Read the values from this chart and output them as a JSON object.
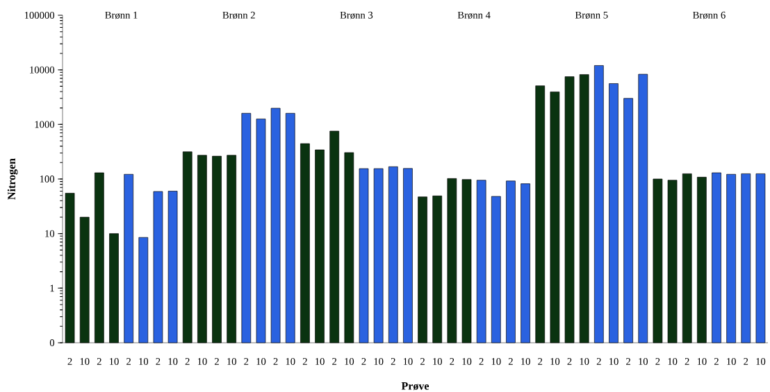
{
  "chart_data": {
    "type": "bar",
    "xlabel": "Prøve",
    "ylabel": "Nitrogen",
    "categories": [
      "2",
      "10",
      "2",
      "10",
      "2",
      "10",
      "2",
      "10",
      "2",
      "10",
      "2",
      "10",
      "2",
      "10",
      "2",
      "10",
      "2",
      "10",
      "2",
      "10",
      "2",
      "10",
      "2",
      "10",
      "2",
      "10",
      "2",
      "10",
      "2",
      "10",
      "2",
      "10",
      "2",
      "10",
      "2",
      "10",
      "2",
      "10",
      "2",
      "10",
      "2",
      "10",
      "2",
      "10",
      "2",
      "10",
      "2",
      "10"
    ],
    "values": [
      55,
      20,
      130,
      10,
      122,
      8.5,
      59,
      60,
      315,
      272,
      262,
      272,
      1600,
      1260,
      1980,
      1600,
      445,
      342,
      755,
      305,
      155,
      155,
      168,
      156,
      47,
      49,
      102,
      98,
      95,
      48,
      92,
      82,
      5100,
      3950,
      7500,
      8200,
      12000,
      5600,
      3000,
      8300,
      100,
      95,
      125,
      108,
      130,
      122,
      125,
      125
    ],
    "colors": [
      "#0a3310",
      "#0a3310",
      "#0a3310",
      "#0a3310",
      "#2a62e0",
      "#2a62e0",
      "#2a62e0",
      "#2a62e0",
      "#0a3310",
      "#0a3310",
      "#0a3310",
      "#0a3310",
      "#2a62e0",
      "#2a62e0",
      "#2a62e0",
      "#2a62e0",
      "#0a3310",
      "#0a3310",
      "#0a3310",
      "#0a3310",
      "#2a62e0",
      "#2a62e0",
      "#2a62e0",
      "#2a62e0",
      "#0a3310",
      "#0a3310",
      "#0a3310",
      "#0a3310",
      "#2a62e0",
      "#2a62e0",
      "#2a62e0",
      "#2a62e0",
      "#0a3310",
      "#0a3310",
      "#0a3310",
      "#0a3310",
      "#2a62e0",
      "#2a62e0",
      "#2a62e0",
      "#2a62e0",
      "#0a3310",
      "#0a3310",
      "#0a3310",
      "#0a3310",
      "#2a62e0",
      "#2a62e0",
      "#2a62e0",
      "#2a62e0"
    ],
    "log": "y",
    "ylim": [
      0.1,
      100000
    ],
    "yticks": [
      {
        "value": 0.1,
        "label": "0"
      },
      1,
      10,
      100,
      1000,
      10000,
      100000
    ],
    "annotations": [
      "Brønn 1",
      "Brønn 2",
      "Brønn 3",
      "Brønn 4",
      "Brønn 5",
      "Brønn 6"
    ]
  }
}
